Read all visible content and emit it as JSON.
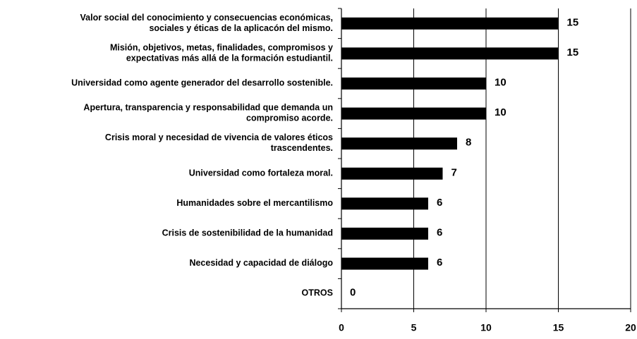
{
  "chart_data": {
    "type": "bar",
    "orientation": "horizontal",
    "categories": [
      "Valor social del conocimiento y consecuencias económicas,\nsociales y éticas de la aplicacón del mismo.",
      "Misión, objetivos, metas, finalidades, compromisos y\nexpectativas más allá de la formación estudiantil.",
      "Universidad como agente generador del desarrollo sostenible.",
      "Apertura, transparencia y responsabilidad que demanda un\ncompromiso acorde.",
      "Crisis moral y necesidad de vivencia de valores éticos\ntrascendentes.",
      "Universidad como fortaleza moral.",
      "Humanidades sobre el mercantilismo",
      "Crisis de sostenibilidad de la humanidad",
      "Necesidad y capacidad de diálogo",
      "OTROS"
    ],
    "values": [
      15,
      15,
      10,
      10,
      8,
      7,
      6,
      6,
      6,
      0
    ],
    "color": "#000000",
    "xlim": [
      0,
      20
    ],
    "xticks": [
      0,
      5,
      10,
      15,
      20
    ],
    "grid": true
  }
}
